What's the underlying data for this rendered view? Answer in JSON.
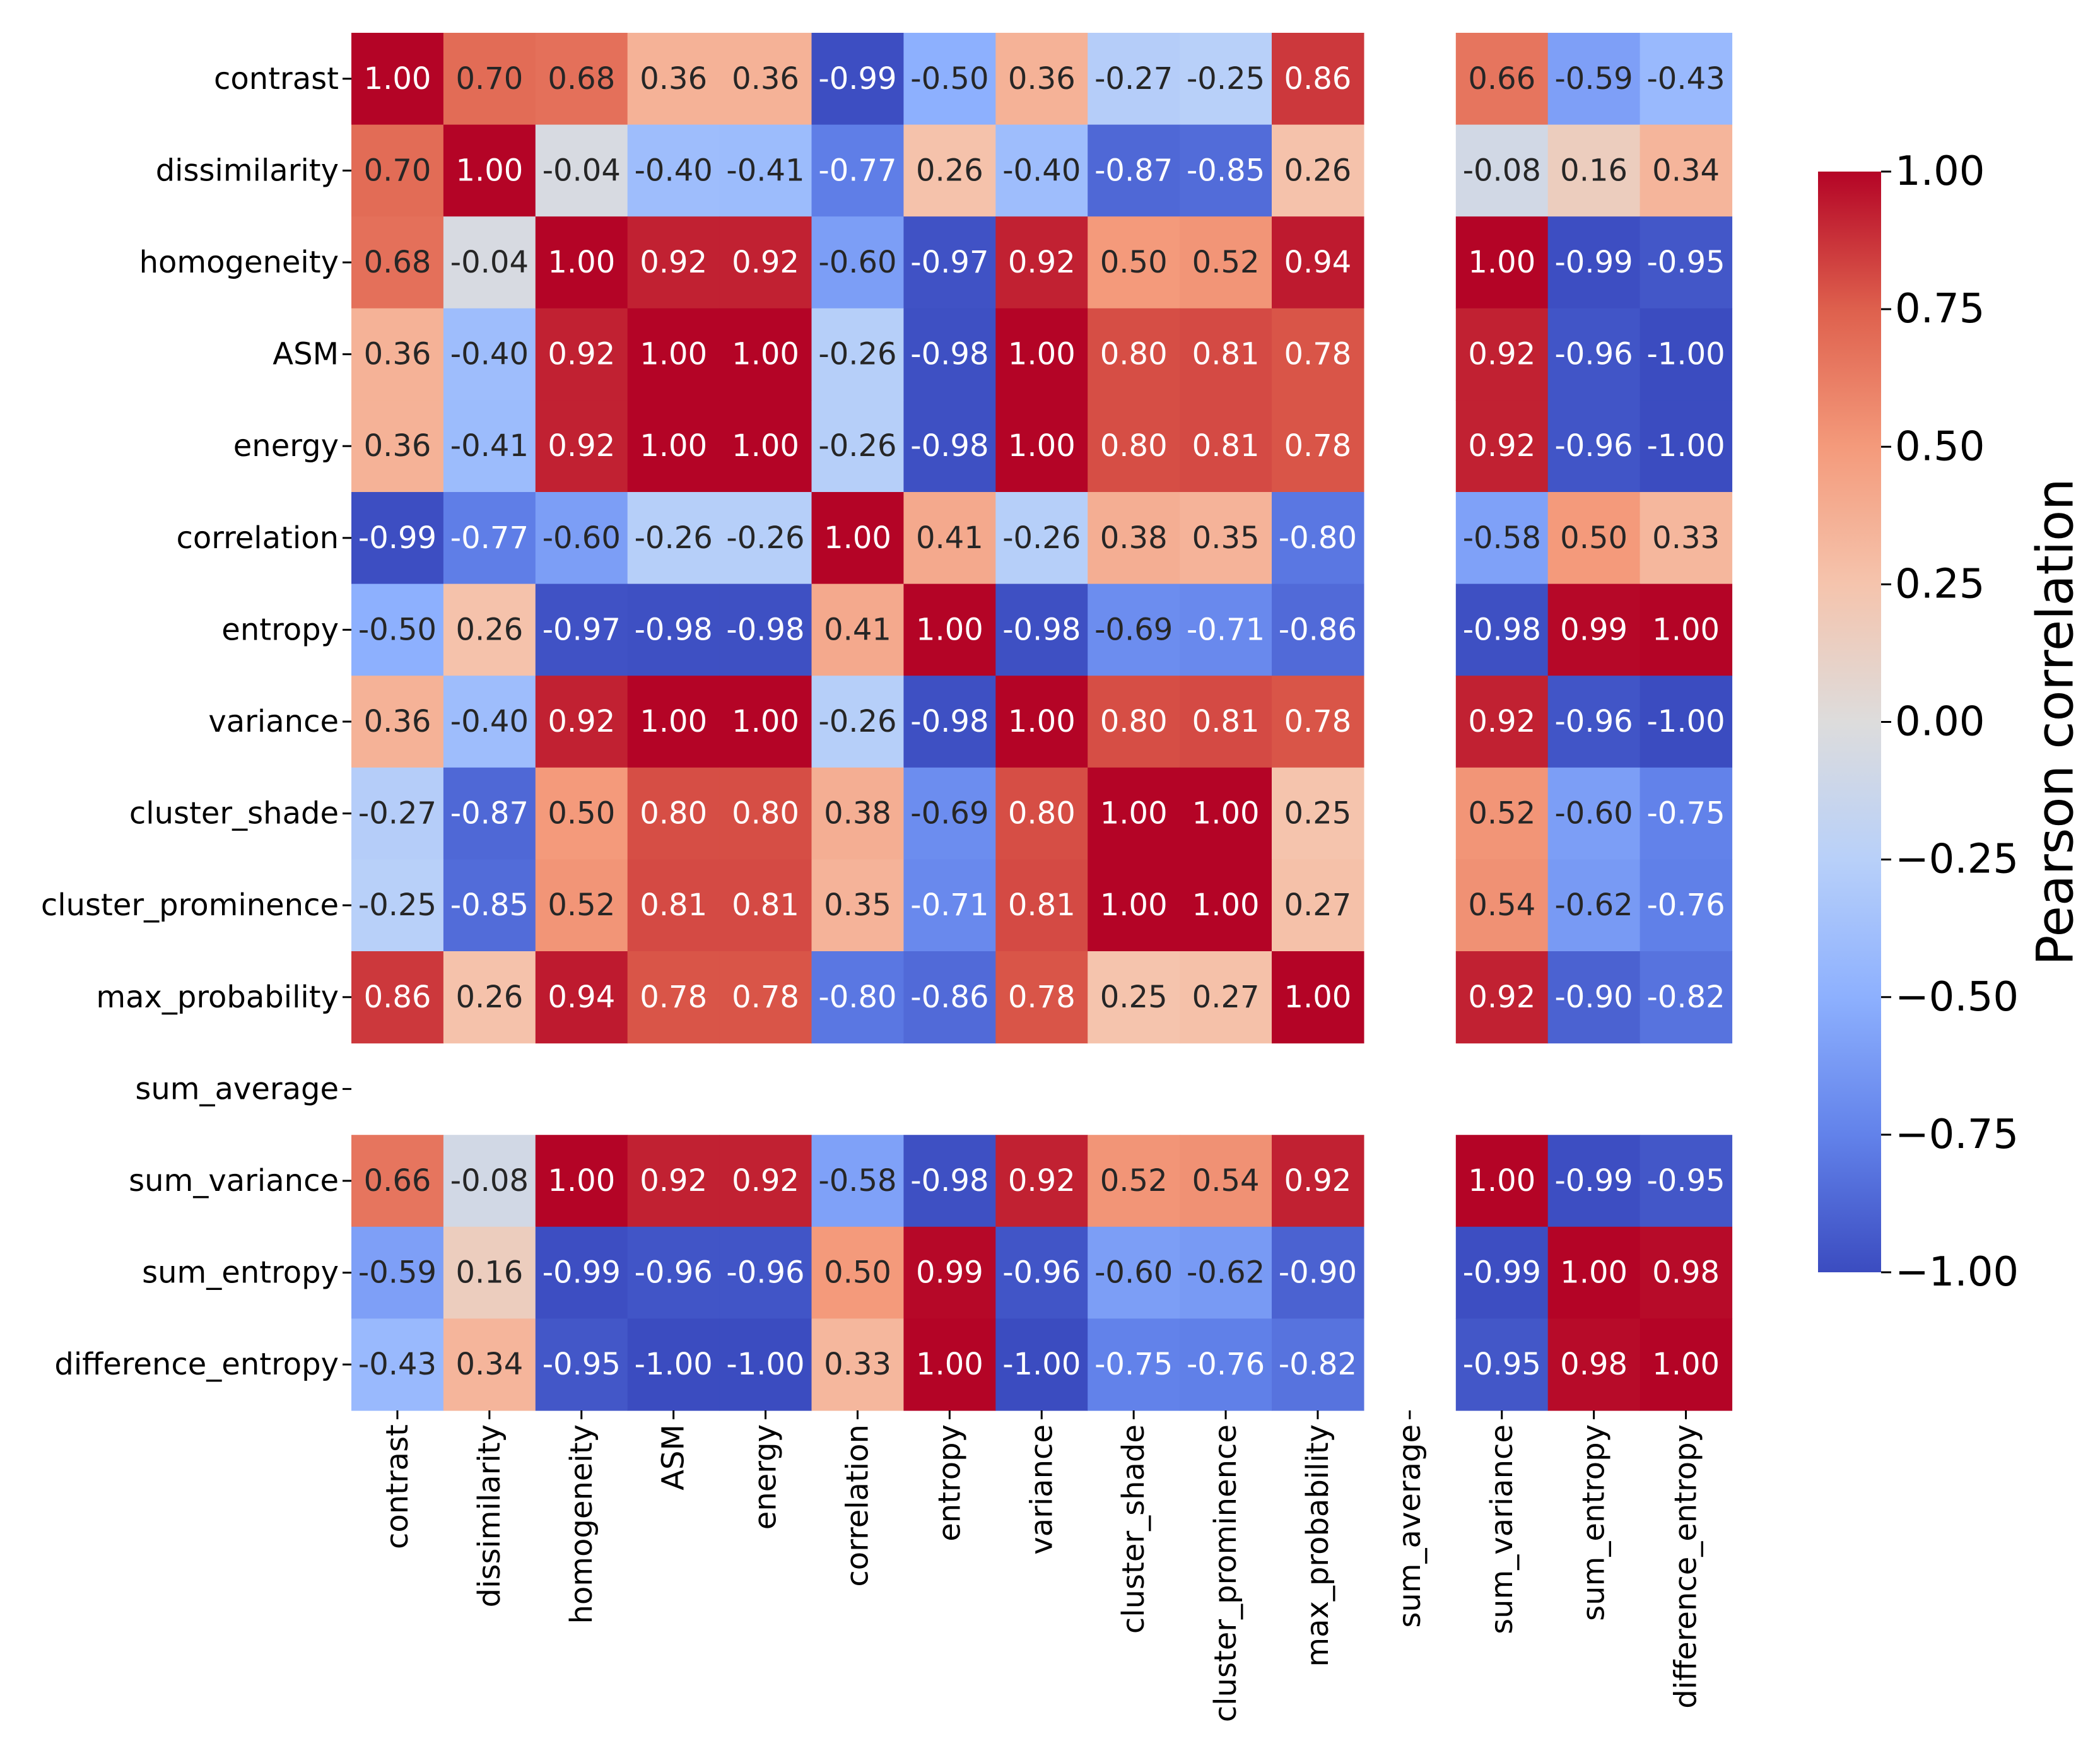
{
  "chart_data": {
    "type": "heatmap",
    "title": "",
    "variables": [
      "contrast",
      "dissimilarity",
      "homogeneity",
      "ASM",
      "energy",
      "correlation",
      "entropy",
      "variance",
      "cluster_shade",
      "cluster_prominence",
      "max_probability",
      "sum_average",
      "sum_variance",
      "sum_entropy",
      "difference_entropy"
    ],
    "values": [
      [
        1.0,
        0.7,
        0.68,
        0.36,
        0.36,
        -0.99,
        -0.5,
        0.36,
        -0.27,
        -0.25,
        0.86,
        null,
        0.66,
        -0.59,
        -0.43
      ],
      [
        0.7,
        1.0,
        -0.04,
        -0.4,
        -0.41,
        -0.77,
        0.26,
        -0.4,
        -0.87,
        -0.85,
        0.26,
        null,
        -0.08,
        0.16,
        0.34
      ],
      [
        0.68,
        -0.04,
        1.0,
        0.92,
        0.92,
        -0.6,
        -0.97,
        0.92,
        0.5,
        0.52,
        0.94,
        null,
        1.0,
        -0.99,
        -0.95
      ],
      [
        0.36,
        -0.4,
        0.92,
        1.0,
        1.0,
        -0.26,
        -0.98,
        1.0,
        0.8,
        0.81,
        0.78,
        null,
        0.92,
        -0.96,
        -1.0
      ],
      [
        0.36,
        -0.41,
        0.92,
        1.0,
        1.0,
        -0.26,
        -0.98,
        1.0,
        0.8,
        0.81,
        0.78,
        null,
        0.92,
        -0.96,
        -1.0
      ],
      [
        -0.99,
        -0.77,
        -0.6,
        -0.26,
        -0.26,
        1.0,
        0.41,
        -0.26,
        0.38,
        0.35,
        -0.8,
        null,
        -0.58,
        0.5,
        0.33
      ],
      [
        -0.5,
        0.26,
        -0.97,
        -0.98,
        -0.98,
        0.41,
        1.0,
        -0.98,
        -0.69,
        -0.71,
        -0.86,
        null,
        -0.98,
        0.99,
        1.0
      ],
      [
        0.36,
        -0.4,
        0.92,
        1.0,
        1.0,
        -0.26,
        -0.98,
        1.0,
        0.8,
        0.81,
        0.78,
        null,
        0.92,
        -0.96,
        -1.0
      ],
      [
        -0.27,
        -0.87,
        0.5,
        0.8,
        0.8,
        0.38,
        -0.69,
        0.8,
        1.0,
        1.0,
        0.25,
        null,
        0.52,
        -0.6,
        -0.75
      ],
      [
        -0.25,
        -0.85,
        0.52,
        0.81,
        0.81,
        0.35,
        -0.71,
        0.81,
        1.0,
        1.0,
        0.27,
        null,
        0.54,
        -0.62,
        -0.76
      ],
      [
        0.86,
        0.26,
        0.94,
        0.78,
        0.78,
        -0.8,
        -0.86,
        0.78,
        0.25,
        0.27,
        1.0,
        null,
        0.92,
        -0.9,
        -0.82
      ],
      [
        null,
        null,
        null,
        null,
        null,
        null,
        null,
        null,
        null,
        null,
        null,
        null,
        null,
        null,
        null
      ],
      [
        0.66,
        -0.08,
        1.0,
        0.92,
        0.92,
        -0.58,
        -0.98,
        0.92,
        0.52,
        0.54,
        0.92,
        null,
        1.0,
        -0.99,
        -0.95
      ],
      [
        -0.59,
        0.16,
        -0.99,
        -0.96,
        -0.96,
        0.5,
        0.99,
        -0.96,
        -0.6,
        -0.62,
        -0.9,
        null,
        -0.99,
        1.0,
        0.98
      ],
      [
        -0.43,
        0.34,
        -0.95,
        -1.0,
        -1.0,
        0.33,
        1.0,
        -1.0,
        -0.75,
        -0.76,
        -0.82,
        null,
        -0.95,
        0.98,
        1.0
      ]
    ],
    "colorbar": {
      "label": "Pearson correlation",
      "range": [
        -1.0,
        1.0
      ],
      "ticks": [
        "1.00",
        "0.75",
        "0.50",
        "0.25",
        "0.00",
        "−0.25",
        "−0.50",
        "−0.75",
        "−1.00"
      ],
      "tick_values": [
        1.0,
        0.75,
        0.5,
        0.25,
        0.0,
        -0.25,
        -0.5,
        -0.75,
        -1.0
      ],
      "colormap": "coolwarm"
    },
    "colors": {
      "low": "#3b4cc0",
      "mid": "#dddcdc",
      "high": "#b40426"
    }
  }
}
